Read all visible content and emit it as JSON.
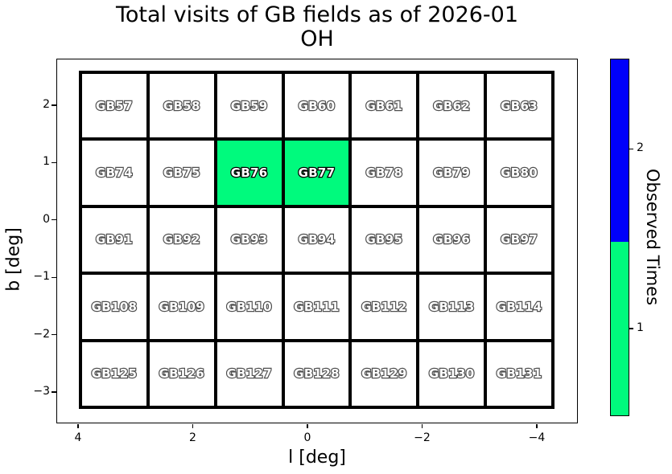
{
  "chart_data": {
    "type": "heatmap",
    "title": "Total visits of GB fields as of 2026-01",
    "subtitle": "OH",
    "xlabel": "l [deg]",
    "ylabel": "b [deg]",
    "x_ticks": [
      {
        "value": 4,
        "label": "4"
      },
      {
        "value": 2,
        "label": "2"
      },
      {
        "value": 0,
        "label": "0"
      },
      {
        "value": -2,
        "label": "−2"
      },
      {
        "value": -4,
        "label": "−4"
      }
    ],
    "y_ticks": [
      {
        "value": 2,
        "label": "2"
      },
      {
        "value": 1,
        "label": "1"
      },
      {
        "value": 0,
        "label": "0"
      },
      {
        "value": -1,
        "label": "−1"
      },
      {
        "value": -2,
        "label": "−2"
      },
      {
        "value": -3,
        "label": "−3"
      }
    ],
    "grid": {
      "rows": 5,
      "cols": 7
    },
    "fields": [
      {
        "label": "GB57",
        "visits": 0
      },
      {
        "label": "GB58",
        "visits": 0
      },
      {
        "label": "GB59",
        "visits": 0
      },
      {
        "label": "GB60",
        "visits": 0
      },
      {
        "label": "GB61",
        "visits": 0
      },
      {
        "label": "GB62",
        "visits": 0
      },
      {
        "label": "GB63",
        "visits": 0
      },
      {
        "label": "GB74",
        "visits": 0
      },
      {
        "label": "GB75",
        "visits": 0
      },
      {
        "label": "GB76",
        "visits": 1
      },
      {
        "label": "GB77",
        "visits": 1
      },
      {
        "label": "GB78",
        "visits": 0
      },
      {
        "label": "GB79",
        "visits": 0
      },
      {
        "label": "GB80",
        "visits": 0
      },
      {
        "label": "GB91",
        "visits": 0
      },
      {
        "label": "GB92",
        "visits": 0
      },
      {
        "label": "GB93",
        "visits": 0
      },
      {
        "label": "GB94",
        "visits": 0
      },
      {
        "label": "GB95",
        "visits": 0
      },
      {
        "label": "GB96",
        "visits": 0
      },
      {
        "label": "GB97",
        "visits": 0
      },
      {
        "label": "GB108",
        "visits": 0
      },
      {
        "label": "GB109",
        "visits": 0
      },
      {
        "label": "GB110",
        "visits": 0
      },
      {
        "label": "GB111",
        "visits": 0
      },
      {
        "label": "GB112",
        "visits": 0
      },
      {
        "label": "GB113",
        "visits": 0
      },
      {
        "label": "GB114",
        "visits": 0
      },
      {
        "label": "GB125",
        "visits": 0
      },
      {
        "label": "GB126",
        "visits": 0
      },
      {
        "label": "GB127",
        "visits": 0
      },
      {
        "label": "GB128",
        "visits": 0
      },
      {
        "label": "GB129",
        "visits": 0
      },
      {
        "label": "GB130",
        "visits": 0
      },
      {
        "label": "GB131",
        "visits": 0
      }
    ],
    "value_colors": {
      "0": "#FFFFFF",
      "1": "#00FA7D",
      "2": "#0000FA"
    },
    "colorbar": {
      "label": "Observed Times",
      "orientation": "vertical",
      "segments": [
        {
          "value": 2,
          "color": "#0000FA",
          "heightFrac": 0.512
        },
        {
          "value": 1,
          "color": "#00FA7D",
          "heightFrac": 0.488
        }
      ],
      "ticks": [
        {
          "label": "2",
          "frac": 0.252
        },
        {
          "label": "1",
          "frac": 0.755
        }
      ]
    }
  }
}
